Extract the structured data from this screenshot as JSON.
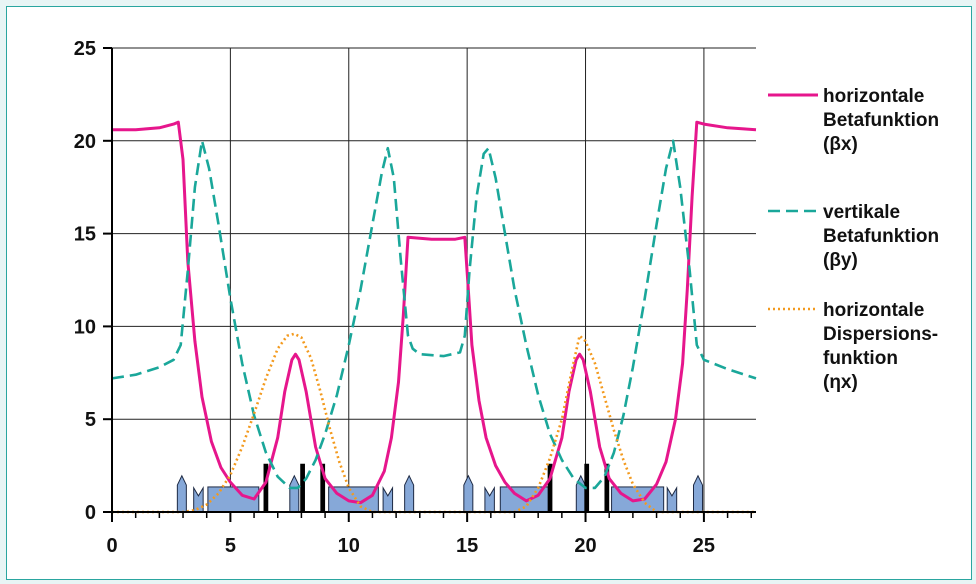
{
  "chart_data": {
    "type": "line",
    "title": "",
    "xlabel": "",
    "ylabel": "",
    "xlim": [
      0,
      27.2
    ],
    "ylim": [
      0,
      25
    ],
    "x_ticks": [
      "0",
      "5",
      "10",
      "15",
      "20",
      "25"
    ],
    "y_ticks": [
      "0",
      "5",
      "10",
      "15",
      "20",
      "25"
    ],
    "grid": true,
    "legend_position": "right",
    "series": [
      {
        "name": "horizontale Betafunktion (βx)",
        "legend_lines": [
          "horizontale",
          "Betafunktion",
          "(βx)"
        ],
        "color": "#e6168c",
        "style": "solid",
        "x": [
          0,
          1,
          2,
          2.6,
          2.8,
          3.0,
          3.2,
          3.5,
          3.8,
          4.2,
          4.6,
          5.0,
          5.5,
          6.0,
          6.5,
          7.0,
          7.3,
          7.6,
          7.75,
          7.9,
          8.2,
          8.6,
          9.0,
          9.5,
          10.0,
          10.5,
          11.0,
          11.5,
          11.8,
          12.1,
          12.3,
          12.5,
          13.5,
          14.5,
          14.9,
          15.05,
          15.2,
          15.5,
          15.8,
          16.2,
          16.6,
          17.0,
          17.5,
          18.0,
          18.5,
          19.0,
          19.3,
          19.6,
          19.75,
          19.9,
          20.2,
          20.6,
          21.0,
          21.5,
          22.0,
          22.5,
          23.0,
          23.4,
          23.8,
          24.1,
          24.3,
          24.5,
          24.7,
          25.0,
          26.0,
          27.2
        ],
        "y": [
          20.6,
          20.6,
          20.7,
          20.9,
          21.0,
          19.0,
          13.5,
          9.2,
          6.2,
          3.8,
          2.4,
          1.6,
          0.9,
          0.7,
          1.6,
          4.0,
          6.5,
          8.2,
          8.5,
          8.2,
          6.5,
          3.5,
          1.8,
          1.0,
          0.6,
          0.5,
          0.9,
          2.2,
          4.0,
          7.0,
          10.5,
          14.8,
          14.7,
          14.7,
          14.8,
          12.0,
          9.0,
          6.0,
          4.0,
          2.5,
          1.6,
          1.0,
          0.6,
          0.9,
          1.8,
          4.0,
          6.5,
          8.2,
          8.5,
          8.2,
          6.5,
          3.5,
          1.8,
          1.0,
          0.6,
          0.7,
          1.5,
          2.7,
          5.0,
          8.0,
          12.0,
          17.0,
          21.0,
          20.9,
          20.7,
          20.6
        ]
      },
      {
        "name": "vertikale Betafunktion (βy)",
        "legend_lines": [
          "vertikale",
          "Betafunktion",
          "(βy)"
        ],
        "color": "#1aa79a",
        "style": "dashed",
        "x": [
          0,
          1,
          2,
          2.6,
          2.9,
          3.2,
          3.5,
          3.8,
          4.1,
          4.5,
          5.0,
          5.5,
          6.0,
          6.5,
          7.0,
          7.5,
          7.85,
          8.2,
          8.6,
          9.0,
          9.5,
          10.0,
          10.5,
          11.0,
          11.4,
          11.65,
          11.9,
          12.2,
          12.5,
          12.7,
          13.0,
          14.0,
          14.7,
          14.9,
          15.1,
          15.4,
          15.7,
          15.9,
          16.2,
          16.6,
          17.0,
          17.5,
          18.0,
          18.5,
          19.0,
          19.5,
          20.0,
          20.4,
          20.8,
          21.2,
          21.6,
          22.0,
          22.5,
          23.0,
          23.4,
          23.7,
          24.0,
          24.4,
          24.7,
          25.0,
          26.0,
          27.2
        ],
        "y": [
          7.2,
          7.4,
          7.8,
          8.2,
          9.0,
          13.0,
          17.5,
          20.0,
          18.5,
          15.5,
          11.5,
          8.0,
          5.2,
          3.2,
          1.9,
          1.3,
          1.3,
          1.8,
          2.8,
          4.2,
          6.3,
          9.0,
          12.0,
          15.5,
          18.3,
          19.6,
          18.0,
          13.5,
          9.5,
          8.8,
          8.5,
          8.4,
          8.6,
          9.5,
          13.0,
          17.0,
          19.3,
          19.6,
          18.0,
          15.0,
          12.0,
          9.0,
          6.3,
          4.2,
          2.8,
          1.8,
          1.3,
          1.3,
          1.9,
          3.2,
          5.2,
          7.8,
          11.5,
          15.5,
          18.5,
          20.0,
          17.5,
          13.0,
          9.0,
          8.2,
          7.7,
          7.2
        ]
      },
      {
        "name": "horizontale Dispersionsfunktion (ηx)",
        "legend_lines": [
          "horizontale",
          "Dispersions-",
          "funktion",
          "(ηx)"
        ],
        "color": "#f39a1e",
        "style": "dotted",
        "x": [
          0,
          3.0,
          3.5,
          4.0,
          4.5,
          5.0,
          5.5,
          6.0,
          6.5,
          7.0,
          7.4,
          7.7,
          8.0,
          8.4,
          8.8,
          9.2,
          9.6,
          10.0,
          10.5,
          11.0,
          16.5,
          17.0,
          17.5,
          18.0,
          18.5,
          19.0,
          19.4,
          19.75,
          20.0,
          20.4,
          20.8,
          21.2,
          21.6,
          22.0,
          22.5,
          23.0,
          27.2
        ],
        "y": [
          0,
          0,
          0.1,
          0.4,
          1.0,
          2.0,
          3.5,
          5.3,
          7.2,
          8.8,
          9.5,
          9.6,
          9.4,
          8.3,
          6.5,
          4.5,
          2.7,
          1.3,
          0.3,
          0.0,
          0.0,
          0.0,
          0.3,
          1.3,
          2.9,
          5.0,
          7.5,
          9.5,
          9.2,
          8.0,
          6.2,
          4.4,
          2.8,
          1.5,
          0.5,
          0.0,
          0.0
        ]
      }
    ],
    "magnet_lattice": {
      "blocks": [
        [
          4.05,
          6.2
        ],
        [
          9.15,
          11.25
        ],
        [
          16.4,
          18.5
        ],
        [
          21.1,
          23.3
        ]
      ],
      "small_quads": [
        [
          3.45,
          3.85
        ],
        [
          11.45,
          11.85
        ],
        [
          15.75,
          16.15
        ],
        [
          23.45,
          23.85
        ]
      ],
      "arrows": [
        2.95,
        7.7,
        12.55,
        15.05,
        19.8,
        24.75
      ],
      "thick_bars": [
        [
          6.4,
          6.6,
          2.6
        ],
        [
          7.95,
          8.15,
          2.6
        ],
        [
          8.8,
          9.0,
          2.6
        ],
        [
          18.4,
          18.6,
          2.6
        ],
        [
          19.95,
          20.15,
          2.6
        ],
        [
          20.8,
          21.0,
          2.6
        ]
      ],
      "block_color": "#86a8d8"
    }
  }
}
